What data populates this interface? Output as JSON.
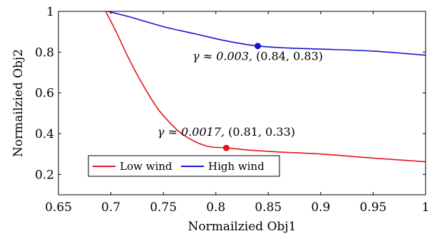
{
  "chart_data": {
    "type": "line",
    "title": "",
    "xlabel": "Normailzied Obj1",
    "ylabel": "Normailzied Obj2",
    "xlim": [
      0.65,
      1.0
    ],
    "ylim": [
      0.1,
      1.0
    ],
    "xticks": [
      0.65,
      0.7,
      0.75,
      0.8,
      0.85,
      0.9,
      0.95,
      1.0
    ],
    "xtick_labels": [
      "0.65",
      "0.7",
      "0.75",
      "0.8",
      "0.85",
      "0.9",
      "0.95",
      "1"
    ],
    "yticks": [
      0.2,
      0.4,
      0.6,
      0.8,
      1.0
    ],
    "ytick_labels": [
      "0.2",
      "0.4",
      "0.6",
      "0.8",
      "1"
    ],
    "grid": false,
    "legend_position": "bottom-left",
    "series": [
      {
        "name": "Low wind",
        "color": "#e8141b",
        "x": [
          0.695,
          0.705,
          0.715,
          0.725,
          0.735,
          0.745,
          0.755,
          0.765,
          0.775,
          0.785,
          0.795,
          0.81,
          0.83,
          0.86,
          0.9,
          0.95,
          1.0
        ],
        "y": [
          1.0,
          0.9,
          0.79,
          0.69,
          0.6,
          0.52,
          0.46,
          0.41,
          0.375,
          0.35,
          0.335,
          0.33,
          0.32,
          0.31,
          0.3,
          0.28,
          0.262
        ],
        "highlight": {
          "x": 0.81,
          "y": 0.33,
          "label_gamma": "γ ≈ 0.0017,",
          "label_point": "(0.81, 0.33)"
        }
      },
      {
        "name": "High wind",
        "color": "#1515d0",
        "x": [
          0.697,
          0.72,
          0.75,
          0.78,
          0.81,
          0.84,
          0.87,
          0.9,
          0.95,
          1.0
        ],
        "y": [
          1.0,
          0.97,
          0.925,
          0.89,
          0.855,
          0.83,
          0.82,
          0.815,
          0.805,
          0.785
        ],
        "highlight": {
          "x": 0.84,
          "y": 0.83,
          "label_gamma": "γ ≈ 0.003,",
          "label_point": "(0.84, 0.83)"
        }
      }
    ]
  }
}
